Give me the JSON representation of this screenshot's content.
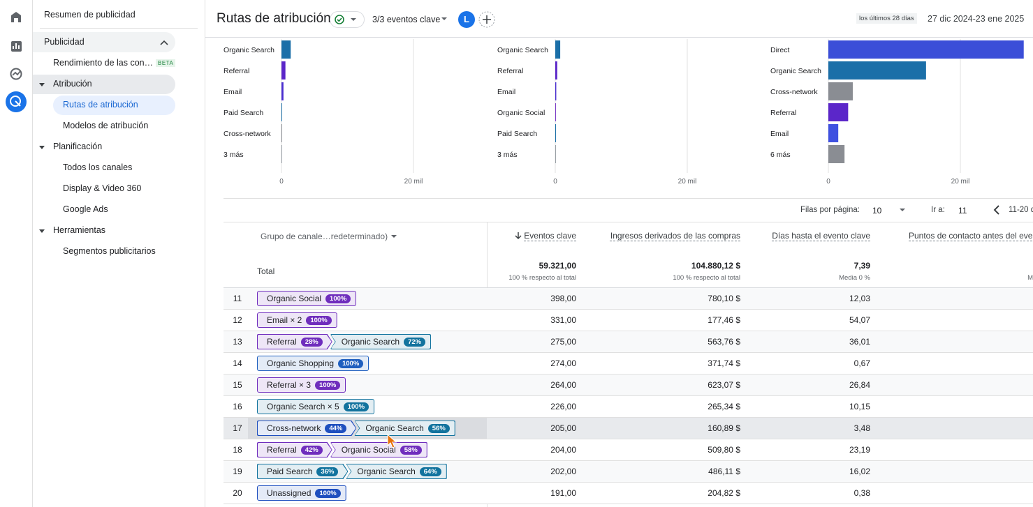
{
  "sidebar": {
    "title": "Resumen de publicidad",
    "group": {
      "label": "Publicidad",
      "items": [
        {
          "label": "Rendimiento de las con…",
          "badge": "BETA"
        },
        {
          "label": "Atribución",
          "children": [
            "Rutas de atribución",
            "Modelos de atribución"
          ]
        },
        {
          "label": "Planificación",
          "children": [
            "Todos los canales",
            "Display & Video 360",
            "Google Ads"
          ]
        },
        {
          "label": "Herramientas",
          "children": [
            "Segmentos publicitarios"
          ]
        }
      ]
    }
  },
  "header": {
    "title": "Rutas de atribución",
    "events": "3/3 eventos clave",
    "avatar": "L",
    "range_label": "los últimos 28 días",
    "range": "27 dic 2024-23 ene 2025"
  },
  "chart_data": [
    {
      "type": "bar",
      "orientation": "horizontal",
      "categories": [
        "Organic Search",
        "Referral",
        "Email",
        "Paid Search",
        "Cross-network",
        "3 más"
      ],
      "values": [
        1400,
        600,
        300,
        100,
        50,
        30
      ],
      "colors": [
        "#1b6fa8",
        "#5b26c9",
        "#4a2fd0",
        "#1b6fa8",
        "#8a8d93",
        "#9aa0a6"
      ],
      "xlim": [
        0,
        30000
      ],
      "xticks": [
        0,
        {
          "value": 20000,
          "label": "20 mil"
        }
      ],
      "grid": true
    },
    {
      "type": "bar",
      "orientation": "horizontal",
      "categories": [
        "Organic Search",
        "Referral",
        "Email",
        "Organic Social",
        "Paid Search",
        "3 más"
      ],
      "values": [
        750,
        300,
        150,
        100,
        50,
        30
      ],
      "colors": [
        "#1b6fa8",
        "#5b26c9",
        "#4a2fd0",
        "#7b3cc9",
        "#1b6fa8",
        "#9aa0a6"
      ],
      "xlim": [
        0,
        30000
      ],
      "xticks": [
        0,
        {
          "value": 20000,
          "label": "20 mil"
        }
      ],
      "grid": true
    },
    {
      "type": "bar",
      "orientation": "horizontal",
      "categories": [
        "Direct",
        "Organic Search",
        "Cross-network",
        "Referral",
        "Email",
        "6 más"
      ],
      "values": [
        29600,
        14800,
        3700,
        3000,
        1500,
        2450
      ],
      "colors": [
        "#3b4ed8",
        "#1b6fa8",
        "#8a8d93",
        "#5b26c9",
        "#3f51e0",
        "#8a8d93"
      ],
      "xlim": [
        0,
        30000
      ],
      "xticks": [
        0,
        {
          "value": 20000,
          "label": "20 mil"
        }
      ],
      "grid": true
    }
  ],
  "pagination": {
    "rows_label": "Filas por página:",
    "rows": "10",
    "goto_label": "Ir a:",
    "goto": "11",
    "range": "11-20 d"
  },
  "table": {
    "columns": [
      "Grupo de canale…redeterminado)",
      "Eventos clave",
      "Ingresos derivados de las compras",
      "Días hasta el evento clave",
      "Puntos de contacto antes del eve"
    ],
    "total": {
      "label": "Total",
      "cells": [
        {
          "value": "59.321,00",
          "note": "100 % respecto al total"
        },
        {
          "value": "104.880,12 $",
          "note": "100 % respecto al total"
        },
        {
          "value": "7,39",
          "note": "Media 0 %"
        },
        {
          "value": "",
          "note": "M"
        }
      ]
    },
    "rows": [
      {
        "index": "11",
        "path": [
          {
            "name": "Organic Social",
            "share": "100%",
            "color": "#6f2dbd"
          }
        ],
        "cells": [
          "398,00",
          "780,10 $",
          "12,03"
        ]
      },
      {
        "index": "12",
        "path": [
          {
            "name": "Email × 2",
            "share": "100%",
            "color": "#6f2dbd"
          }
        ],
        "cells": [
          "331,00",
          "177,46 $",
          "54,07"
        ]
      },
      {
        "index": "13",
        "path": [
          {
            "name": "Referral",
            "share": "28%",
            "color": "#6f2dbd"
          },
          {
            "name": "Organic Search",
            "share": "72%",
            "color": "#12739e"
          }
        ],
        "cells": [
          "275,00",
          "563,76 $",
          "36,01"
        ]
      },
      {
        "index": "14",
        "path": [
          {
            "name": "Organic Shopping",
            "share": "100%",
            "color": "#1f5fbf"
          }
        ],
        "cells": [
          "274,00",
          "371,74 $",
          "0,67"
        ]
      },
      {
        "index": "15",
        "path": [
          {
            "name": "Referral × 3",
            "share": "100%",
            "color": "#6f2dbd"
          }
        ],
        "cells": [
          "264,00",
          "623,07 $",
          "26,84"
        ]
      },
      {
        "index": "16",
        "path": [
          {
            "name": "Organic Search × 5",
            "share": "100%",
            "color": "#12739e"
          }
        ],
        "cells": [
          "226,00",
          "265,34 $",
          "10,15"
        ]
      },
      {
        "index": "17",
        "path": [
          {
            "name": "Cross-network",
            "share": "44%",
            "color": "#1f4fbf"
          },
          {
            "name": "Organic Search",
            "share": "56%",
            "color": "#12739e"
          }
        ],
        "cells": [
          "205,00",
          "160,89 $",
          "3,48"
        ]
      },
      {
        "index": "18",
        "path": [
          {
            "name": "Referral",
            "share": "42%",
            "color": "#6f2dbd"
          },
          {
            "name": "Organic Social",
            "share": "58%",
            "color": "#6f2dbd"
          }
        ],
        "cells": [
          "204,00",
          "509,80 $",
          "23,19"
        ]
      },
      {
        "index": "19",
        "path": [
          {
            "name": "Paid Search",
            "share": "36%",
            "color": "#12739e"
          },
          {
            "name": "Organic Search",
            "share": "64%",
            "color": "#12739e"
          }
        ],
        "cells": [
          "202,00",
          "486,11 $",
          "16,02"
        ]
      },
      {
        "index": "20",
        "path": [
          {
            "name": "Unassigned",
            "share": "100%",
            "color": "#1f4fbf"
          }
        ],
        "cells": [
          "191,00",
          "204,82 $",
          "0,38"
        ]
      }
    ]
  }
}
